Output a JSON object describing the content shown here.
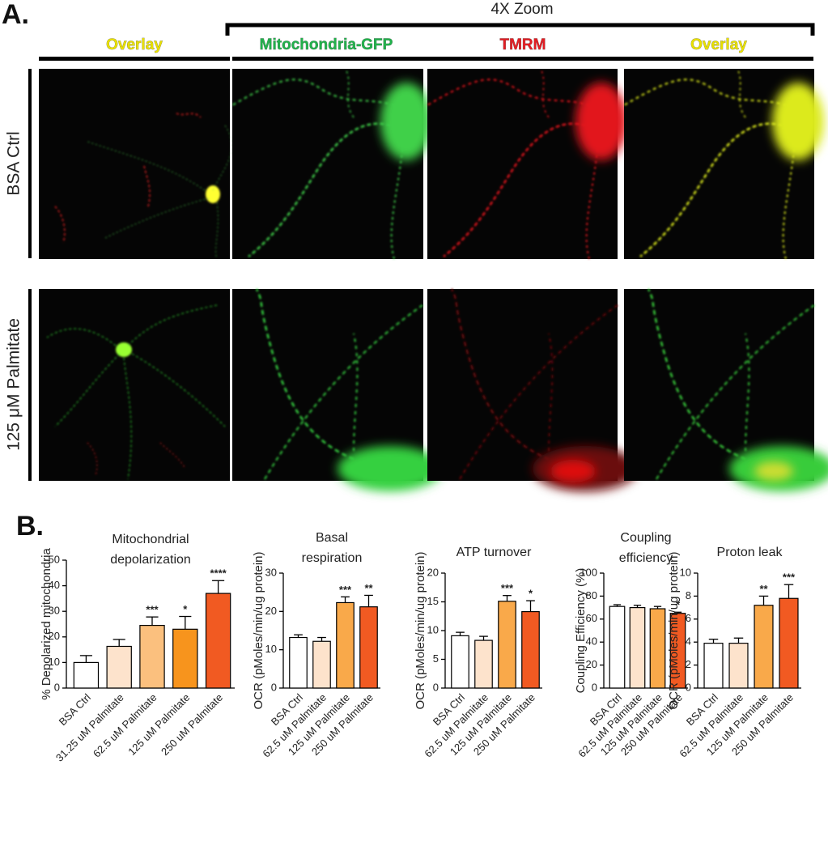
{
  "panel_a": {
    "label": "A.",
    "zoom_label": "4X Zoom",
    "columns": [
      "Overlay",
      "Mitochondria-GFP",
      "TMRM",
      "Overlay"
    ],
    "rows": [
      "BSA Ctrl",
      "125 μM Palmitate"
    ]
  },
  "panel_b": {
    "label": "B."
  },
  "chart_data": [
    {
      "type": "bar",
      "title": [
        "Mitochondrial",
        "depolarization"
      ],
      "y_label": "% Depolarized mitochondria",
      "categories": [
        "BSA Ctrl",
        "31.25 uM Palmitate",
        "62.5 uM Palmitate",
        "125 uM Palmitate",
        "250 uM Palmitate"
      ],
      "values": [
        10,
        16.3,
        24.5,
        23,
        37
      ],
      "errors": [
        2.7,
        2.7,
        3.3,
        5,
        5
      ],
      "significance": [
        null,
        null,
        "***",
        "*",
        "****"
      ],
      "colors": [
        "#ffffff",
        "#fde3cc",
        "#fbc07e",
        "#f7941d",
        "#f15a22"
      ],
      "ylim": [
        0,
        50
      ],
      "yticks": [
        0,
        10,
        20,
        30,
        40,
        50
      ]
    },
    {
      "type": "bar",
      "title": [
        "Basal",
        "respiration"
      ],
      "y_label": "OCR (pMoles/min/ug protein)",
      "categories": [
        "BSA Ctrl",
        "62.5 uM Palmitate",
        "125 uM Palmitate",
        "250 uM Palmitate"
      ],
      "values": [
        13.2,
        12.2,
        22.3,
        21.2
      ],
      "errors": [
        0.7,
        1.0,
        1.5,
        3.0
      ],
      "significance": [
        null,
        null,
        "***",
        "**"
      ],
      "colors": [
        "#ffffff",
        "#fde3cc",
        "#f9a94a",
        "#f15a22"
      ],
      "ylim": [
        0,
        30
      ],
      "yticks": [
        0,
        10,
        20,
        30
      ]
    },
    {
      "type": "bar",
      "title": [
        "ATP turnover"
      ],
      "y_label": "OCR (pMoles/min/ug protein)",
      "categories": [
        "BSA Ctrl",
        "62.5 uM Palmitate",
        "125 uM Palmitate",
        "250 uM Palmitate"
      ],
      "values": [
        9.1,
        8.3,
        15.1,
        13.3
      ],
      "errors": [
        0.6,
        0.7,
        1.0,
        1.9
      ],
      "significance": [
        null,
        null,
        "***",
        "*"
      ],
      "colors": [
        "#ffffff",
        "#fde3cc",
        "#f9a94a",
        "#f15a22"
      ],
      "ylim": [
        0,
        20
      ],
      "yticks": [
        0,
        5,
        10,
        15,
        20
      ]
    },
    {
      "type": "bar",
      "title": [
        "Coupling",
        "efficiency"
      ],
      "y_label": "Coupling Efficiency (%)",
      "categories": [
        "BSA Ctrl",
        "62.5 uM Palmitate",
        "125 uM Palmitate",
        "250 uM Palmitate"
      ],
      "values": [
        71,
        70,
        69,
        65
      ],
      "errors": [
        1.5,
        2,
        2,
        1
      ],
      "significance": [
        null,
        null,
        null,
        "*"
      ],
      "colors": [
        "#ffffff",
        "#fde3cc",
        "#f9a94a",
        "#f15a22"
      ],
      "ylim": [
        0,
        100
      ],
      "yticks": [
        0,
        20,
        40,
        60,
        80,
        100
      ]
    },
    {
      "type": "bar",
      "title": [
        "Proton leak"
      ],
      "y_label": "OCR (pMoles/min/ug protein)",
      "categories": [
        "BSA Ctrl",
        "62.5 uM Palmitate",
        "125 uM Palmitate",
        "250 uM Palmitate"
      ],
      "values": [
        3.9,
        3.9,
        7.2,
        7.8
      ],
      "errors": [
        0.35,
        0.45,
        0.8,
        1.2
      ],
      "significance": [
        null,
        null,
        "**",
        "***"
      ],
      "colors": [
        "#ffffff",
        "#fde3cc",
        "#f9a94a",
        "#f15a22"
      ],
      "ylim": [
        0,
        10
      ],
      "yticks": [
        0,
        2,
        4,
        6,
        8,
        10
      ]
    }
  ]
}
